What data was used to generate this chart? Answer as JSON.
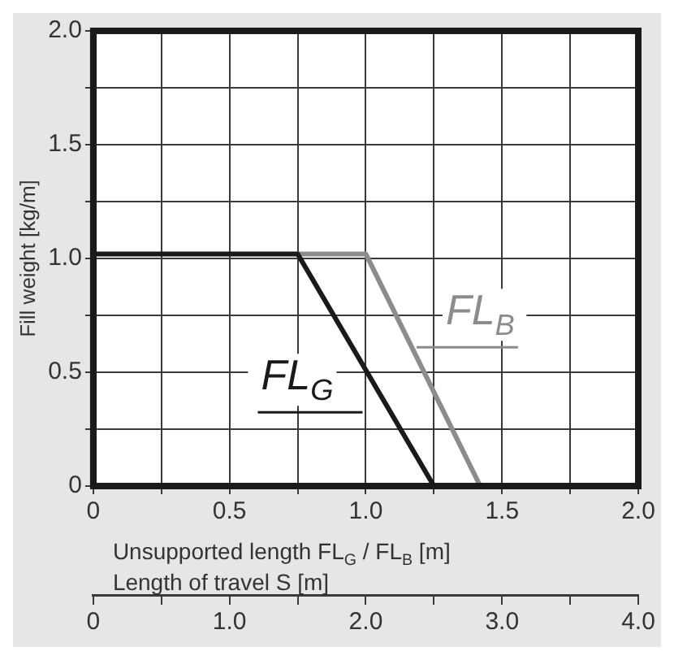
{
  "chart_data": {
    "type": "line",
    "xlabel": "Unsupported length FL$_{G}$ / FL$_{B}$ [m]",
    "ylabel": "Fill weight [kg/m]",
    "x2label": "Length of travel S [m]",
    "series": [
      {
        "name": "FL$_{G}$",
        "color": "#1a1a1a",
        "x": [
          0,
          0.75,
          1.25
        ],
        "values": [
          1.02,
          1.02,
          0
        ]
      },
      {
        "name": "FL$_{B}$",
        "color": "#8c8c8c",
        "x": [
          0.75,
          1.0,
          1.42
        ],
        "values": [
          1.02,
          1.02,
          0
        ]
      }
    ],
    "xlim": [
      0,
      2.0
    ],
    "ylim": [
      0,
      2.0
    ],
    "x2lim": [
      0,
      4.0
    ],
    "xticks": [
      0,
      {
        "value": 0.25,
        "label": null
      },
      {
        "value": 0.5,
        "label": "0.5"
      },
      {
        "value": 0.75,
        "label": null
      },
      {
        "value": 1.0,
        "label": "1.0"
      },
      {
        "value": 1.25,
        "label": null
      },
      {
        "value": 1.5,
        "label": "1.5"
      },
      {
        "value": 1.75,
        "label": null
      },
      {
        "value": 2.0,
        "label": "2.0"
      }
    ],
    "yticks": [
      0,
      {
        "value": 0.25,
        "label": null
      },
      {
        "value": 0.5,
        "label": "0.5"
      },
      {
        "value": 0.75,
        "label": null
      },
      {
        "value": 1.0,
        "label": "1.0"
      },
      {
        "value": 1.25,
        "label": null
      },
      {
        "value": 1.5,
        "label": "1.5"
      },
      {
        "value": 1.75,
        "label": null
      },
      {
        "value": 2.0,
        "label": "2.0"
      }
    ],
    "x2ticks": [
      0,
      {
        "value": 0.5,
        "label": null
      },
      {
        "value": 1.0,
        "label": "1.0"
      },
      {
        "value": 1.5,
        "label": null
      },
      {
        "value": 2.0,
        "label": "2.0"
      },
      {
        "value": 2.5,
        "label": null
      },
      {
        "value": 3.0,
        "label": "3.0"
      },
      {
        "value": 3.5,
        "label": null
      },
      {
        "value": 4.0,
        "label": "4.0"
      }
    ],
    "grid": true,
    "legend": false,
    "marker": "none",
    "line_style": "solid"
  }
}
